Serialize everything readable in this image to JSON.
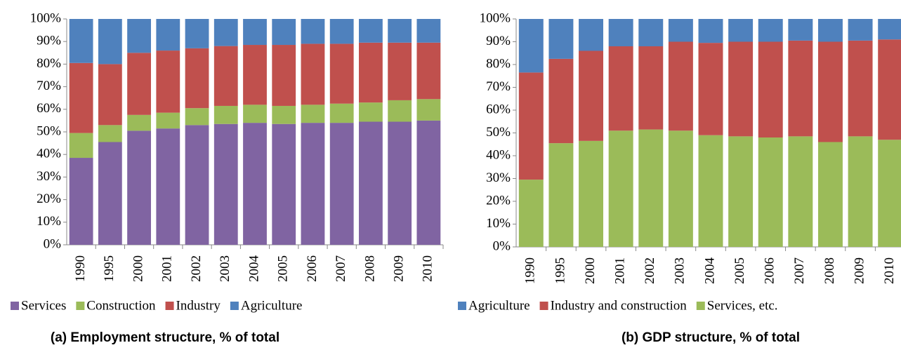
{
  "chart_data": [
    {
      "type": "bar",
      "stacked": true,
      "title": "(a) Employment structure, % of total",
      "categories": [
        "1990",
        "1995",
        "2000",
        "2001",
        "2002",
        "2003",
        "2004",
        "2005",
        "2006",
        "2007",
        "2008",
        "2009",
        "2010"
      ],
      "series": [
        {
          "name": "Services",
          "color": "#8064a2",
          "values": [
            38.5,
            45.5,
            50.5,
            51.5,
            53,
            53.5,
            54,
            53.5,
            54,
            54,
            54.5,
            54.5,
            55
          ]
        },
        {
          "name": "Construction",
          "color": "#9bbb59",
          "values": [
            11,
            7.5,
            7,
            7,
            7.5,
            8,
            8,
            8,
            8,
            8.5,
            8.5,
            9.5,
            9.5
          ]
        },
        {
          "name": "Industry",
          "color": "#c0504d",
          "values": [
            31,
            27,
            27.5,
            27.5,
            26.5,
            26.5,
            26.5,
            27,
            27,
            26.5,
            26.5,
            25.5,
            25
          ]
        },
        {
          "name": "Agriculture",
          "color": "#4f81bd",
          "values": [
            19.5,
            20,
            15,
            14,
            13,
            12,
            11.5,
            11.5,
            11,
            11,
            10.5,
            10.5,
            10.5
          ]
        }
      ],
      "ylim": [
        0,
        100
      ],
      "yticks": [
        {
          "value": 0,
          "label": "0%"
        },
        {
          "value": 10,
          "label": "10%"
        },
        {
          "value": 20,
          "label": "20%"
        },
        {
          "value": 30,
          "label": "30%"
        },
        {
          "value": 40,
          "label": "40%"
        },
        {
          "value": 50,
          "label": "50%"
        },
        {
          "value": 60,
          "label": "60%"
        },
        {
          "value": 70,
          "label": "70%"
        },
        {
          "value": 80,
          "label": "80%"
        },
        {
          "value": 90,
          "label": "90%"
        },
        {
          "value": 100,
          "label": "100%"
        }
      ],
      "grid": false
    },
    {
      "type": "bar",
      "stacked": true,
      "title": "(b) GDP structure, % of total",
      "categories": [
        "1990",
        "1995",
        "2000",
        "2001",
        "2002",
        "2003",
        "2004",
        "2005",
        "2006",
        "2007",
        "2008",
        "2009",
        "2010"
      ],
      "series": [
        {
          "name": "Agriculture",
          "color": "#4f81bd",
          "values": [
            23.5,
            17.5,
            14,
            12,
            12,
            10,
            10.5,
            10,
            10,
            9.5,
            10,
            9.5,
            9
          ]
        },
        {
          "name": "Industry and construction",
          "color": "#c0504d",
          "values": [
            47,
            37,
            39.5,
            37,
            36.5,
            39,
            40.5,
            41.5,
            42,
            42,
            44,
            42,
            44
          ]
        },
        {
          "name": "Services, etc.",
          "color": "#9bbb59",
          "values": [
            29.5,
            45.5,
            46.5,
            51,
            51.5,
            51,
            49,
            48.5,
            48,
            48.5,
            46,
            48.5,
            47
          ]
        }
      ],
      "ylim": [
        0,
        100
      ],
      "yticks": [
        {
          "value": 0,
          "label": "0%"
        },
        {
          "value": 10,
          "label": "10%"
        },
        {
          "value": 20,
          "label": "20%"
        },
        {
          "value": 30,
          "label": "30%"
        },
        {
          "value": 40,
          "label": "40%"
        },
        {
          "value": 50,
          "label": "50%"
        },
        {
          "value": 60,
          "label": "60%"
        },
        {
          "value": 70,
          "label": "70%"
        },
        {
          "value": 80,
          "label": "80%"
        },
        {
          "value": 90,
          "label": "90%"
        },
        {
          "value": 100,
          "label": "100%"
        }
      ],
      "grid": false
    }
  ]
}
